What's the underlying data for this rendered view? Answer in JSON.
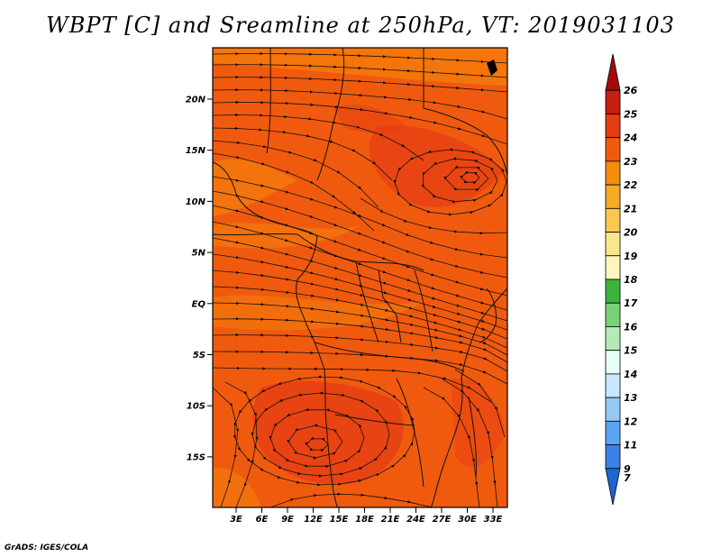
{
  "title": "WBPT [C] and Sreamline at 250hPa, VT: 2019031103",
  "credit": "GrADS: IGES/COLA",
  "map": {
    "variable": "WBPT [C]",
    "overlay": "Streamline",
    "level": "250hPa",
    "valid_time": "2019031103",
    "lat_labels": [
      "20N",
      "15N",
      "10N",
      "5N",
      "EQ",
      "5S",
      "10S",
      "15S"
    ],
    "lon_labels": [
      "3E",
      "6E",
      "9E",
      "12E",
      "15E",
      "18E",
      "21E",
      "24E",
      "27E",
      "30E",
      "33E"
    ],
    "features": [
      "anticyclone-north",
      "anticyclone-south"
    ]
  },
  "colorbar": {
    "labels": [
      "26",
      "25",
      "24",
      "23",
      "22",
      "21",
      "20",
      "19",
      "18",
      "17",
      "16",
      "15",
      "14",
      "13",
      "12",
      "11",
      "9",
      "7"
    ],
    "colors": [
      "#a50a0a",
      "#c81e0f",
      "#e63c14",
      "#f05a0f",
      "#f58c0a",
      "#f5aa28",
      "#fac850",
      "#fae68c",
      "#fff5be",
      "#3cb43c",
      "#78d278",
      "#b4ebb4",
      "#e6fff5",
      "#c8e6ff",
      "#96c8f5",
      "#5aa5f0",
      "#3c82e6",
      "#1e64d2"
    ]
  }
}
